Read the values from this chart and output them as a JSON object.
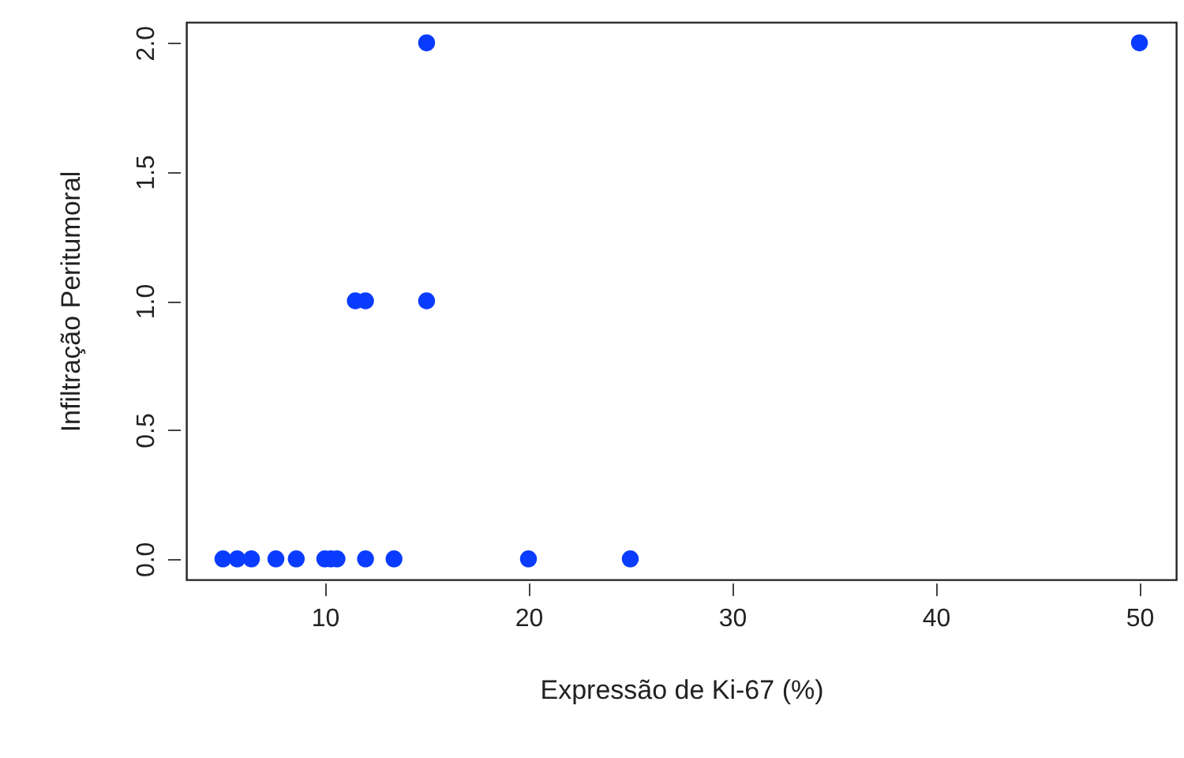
{
  "chart_data": {
    "type": "scatter",
    "xlabel": "Expressão de Ki-67 (%)",
    "ylabel": "Infiltração Peritumoral",
    "x": [
      5,
      5.7,
      6.4,
      7.6,
      8.6,
      10,
      10.3,
      10.6,
      12,
      13.4,
      20,
      25,
      11.5,
      12,
      15,
      15,
      50
    ],
    "values": [
      0,
      0,
      0,
      0,
      0,
      0,
      0,
      0,
      0,
      0,
      0,
      0,
      1,
      1,
      1,
      2,
      2
    ],
    "color": "#0a3cff",
    "marker": "circle",
    "grid": false,
    "xlim": [
      3.2,
      51.8
    ],
    "ylim": [
      -0.08,
      2.08
    ],
    "xticks": [
      10,
      20,
      30,
      40,
      50
    ],
    "yticks": [
      {
        "value": 0,
        "label": "0.0"
      },
      0.5,
      {
        "value": 1,
        "label": "1.0"
      },
      1.5,
      {
        "value": 2,
        "label": "2.0"
      }
    ]
  }
}
